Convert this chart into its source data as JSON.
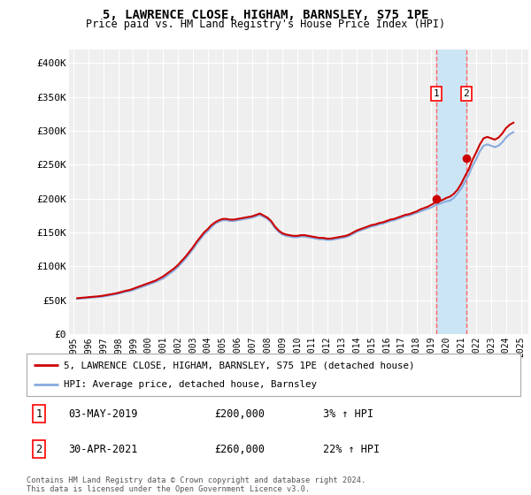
{
  "title": "5, LAWRENCE CLOSE, HIGHAM, BARNSLEY, S75 1PE",
  "subtitle": "Price paid vs. HM Land Registry's House Price Index (HPI)",
  "ylabel_ticks": [
    "£0",
    "£50K",
    "£100K",
    "£150K",
    "£200K",
    "£250K",
    "£300K",
    "£350K",
    "£400K"
  ],
  "ytick_values": [
    0,
    50000,
    100000,
    150000,
    200000,
    250000,
    300000,
    350000,
    400000
  ],
  "ylim": [
    0,
    420000
  ],
  "xlim_start": 1994.7,
  "xlim_end": 2025.5,
  "xtick_years": [
    1995,
    1996,
    1997,
    1998,
    1999,
    2000,
    2001,
    2002,
    2003,
    2004,
    2005,
    2006,
    2007,
    2008,
    2009,
    2010,
    2011,
    2012,
    2013,
    2014,
    2015,
    2016,
    2017,
    2018,
    2019,
    2020,
    2021,
    2022,
    2023,
    2024,
    2025
  ],
  "hpi_x": [
    1995.25,
    1995.5,
    1995.75,
    1996.0,
    1996.25,
    1996.5,
    1996.75,
    1997.0,
    1997.25,
    1997.5,
    1997.75,
    1998.0,
    1998.25,
    1998.5,
    1998.75,
    1999.0,
    1999.25,
    1999.5,
    1999.75,
    2000.0,
    2000.25,
    2000.5,
    2000.75,
    2001.0,
    2001.25,
    2001.5,
    2001.75,
    2002.0,
    2002.25,
    2002.5,
    2002.75,
    2003.0,
    2003.25,
    2003.5,
    2003.75,
    2004.0,
    2004.25,
    2004.5,
    2004.75,
    2005.0,
    2005.25,
    2005.5,
    2005.75,
    2006.0,
    2006.25,
    2006.5,
    2006.75,
    2007.0,
    2007.25,
    2007.5,
    2007.75,
    2008.0,
    2008.25,
    2008.5,
    2008.75,
    2009.0,
    2009.25,
    2009.5,
    2009.75,
    2010.0,
    2010.25,
    2010.5,
    2010.75,
    2011.0,
    2011.25,
    2011.5,
    2011.75,
    2012.0,
    2012.25,
    2012.5,
    2012.75,
    2013.0,
    2013.25,
    2013.5,
    2013.75,
    2014.0,
    2014.25,
    2014.5,
    2014.75,
    2015.0,
    2015.25,
    2015.5,
    2015.75,
    2016.0,
    2016.25,
    2016.5,
    2016.75,
    2017.0,
    2017.25,
    2017.5,
    2017.75,
    2018.0,
    2018.25,
    2018.5,
    2018.75,
    2019.0,
    2019.25,
    2019.5,
    2019.75,
    2020.0,
    2020.25,
    2020.5,
    2020.75,
    2021.0,
    2021.25,
    2021.5,
    2021.75,
    2022.0,
    2022.25,
    2022.5,
    2022.75,
    2023.0,
    2023.25,
    2023.5,
    2023.75,
    2024.0,
    2024.25,
    2024.5
  ],
  "hpi_y": [
    52000,
    52500,
    53000,
    53500,
    54000,
    54500,
    55000,
    55500,
    56500,
    57500,
    58500,
    59500,
    61000,
    62500,
    63500,
    65000,
    67000,
    69000,
    71000,
    73000,
    75000,
    77000,
    79500,
    82000,
    86000,
    90000,
    94000,
    99000,
    105000,
    111000,
    118000,
    125000,
    133000,
    140000,
    147000,
    152000,
    158000,
    163000,
    166000,
    168000,
    168000,
    167000,
    167000,
    168000,
    169000,
    170000,
    171000,
    172000,
    174000,
    176000,
    173000,
    170000,
    165000,
    157000,
    151000,
    147000,
    145000,
    144000,
    143000,
    143000,
    144000,
    144000,
    143000,
    142000,
    141000,
    140000,
    140000,
    139000,
    139000,
    140000,
    141000,
    142000,
    143000,
    145000,
    148000,
    151000,
    153000,
    155000,
    157000,
    159000,
    160000,
    162000,
    163000,
    165000,
    167000,
    168000,
    170000,
    172000,
    174000,
    175000,
    177000,
    179000,
    181000,
    183000,
    185000,
    187000,
    190000,
    192000,
    194000,
    196000,
    197000,
    201000,
    207000,
    215000,
    225000,
    235000,
    248000,
    258000,
    270000,
    278000,
    280000,
    278000,
    276000,
    278000,
    283000,
    290000,
    295000,
    298000
  ],
  "price_line_x": [
    1995.25,
    1995.5,
    1995.75,
    1996.0,
    1996.25,
    1996.5,
    1996.75,
    1997.0,
    1997.25,
    1997.5,
    1997.75,
    1998.0,
    1998.25,
    1998.5,
    1998.75,
    1999.0,
    1999.25,
    1999.5,
    1999.75,
    2000.0,
    2000.25,
    2000.5,
    2000.75,
    2001.0,
    2001.25,
    2001.5,
    2001.75,
    2002.0,
    2002.25,
    2002.5,
    2002.75,
    2003.0,
    2003.25,
    2003.5,
    2003.75,
    2004.0,
    2004.25,
    2004.5,
    2004.75,
    2005.0,
    2005.25,
    2005.5,
    2005.75,
    2006.0,
    2006.25,
    2006.5,
    2006.75,
    2007.0,
    2007.25,
    2007.5,
    2007.75,
    2008.0,
    2008.25,
    2008.5,
    2008.75,
    2009.0,
    2009.25,
    2009.5,
    2009.75,
    2010.0,
    2010.25,
    2010.5,
    2010.75,
    2011.0,
    2011.25,
    2011.5,
    2011.75,
    2012.0,
    2012.25,
    2012.5,
    2012.75,
    2013.0,
    2013.25,
    2013.5,
    2013.75,
    2014.0,
    2014.25,
    2014.5,
    2014.75,
    2015.0,
    2015.25,
    2015.5,
    2015.75,
    2016.0,
    2016.25,
    2016.5,
    2016.75,
    2017.0,
    2017.25,
    2017.5,
    2017.75,
    2018.0,
    2018.25,
    2018.5,
    2018.75,
    2019.0,
    2019.25,
    2019.5,
    2019.75,
    2020.0,
    2020.25,
    2020.5,
    2020.75,
    2021.0,
    2021.25,
    2021.5,
    2021.75,
    2022.0,
    2022.25,
    2022.5,
    2022.75,
    2023.0,
    2023.25,
    2023.5,
    2023.75,
    2024.0,
    2024.25,
    2024.5
  ],
  "price_line_y": [
    53000,
    53500,
    54000,
    54500,
    55000,
    55500,
    56000,
    56800,
    57800,
    58800,
    59800,
    61000,
    62500,
    64000,
    65000,
    67000,
    69000,
    71000,
    73000,
    75000,
    77000,
    79000,
    82000,
    85000,
    89000,
    93000,
    97000,
    102000,
    108000,
    114000,
    121000,
    128000,
    136000,
    143000,
    150000,
    155000,
    161000,
    165000,
    168000,
    170000,
    170000,
    169000,
    169000,
    170000,
    171000,
    172000,
    173000,
    174000,
    176000,
    178000,
    175000,
    172000,
    167000,
    159000,
    153000,
    149000,
    147000,
    146000,
    145000,
    145000,
    146000,
    146000,
    145000,
    144000,
    143000,
    142000,
    142000,
    141000,
    141000,
    142000,
    143000,
    144000,
    145000,
    147000,
    150000,
    153000,
    155000,
    157000,
    159000,
    161000,
    162000,
    164000,
    165000,
    167000,
    169000,
    170000,
    172000,
    174000,
    176000,
    177000,
    179000,
    181000,
    184000,
    186000,
    188000,
    191000,
    194000,
    196000,
    198000,
    201000,
    203000,
    207000,
    213000,
    222000,
    233000,
    243000,
    257000,
    268000,
    280000,
    289000,
    291000,
    289000,
    287000,
    290000,
    296000,
    304000,
    309000,
    312000
  ],
  "sale1_x": 2019.33,
  "sale1_y": 200000,
  "sale2_x": 2021.33,
  "sale2_y": 260000,
  "sale1_vline": 2019.33,
  "sale2_vline": 2021.33,
  "highlight_color": "#cce5f5",
  "vline_color": "#ff6666",
  "hpi_color": "#88aadd",
  "price_color": "#cc0000",
  "legend1_label": "5, LAWRENCE CLOSE, HIGHAM, BARNSLEY, S75 1PE (detached house)",
  "legend2_label": "HPI: Average price, detached house, Barnsley",
  "annotation1_label": "1",
  "annotation2_label": "2",
  "note1_num": "1",
  "note1_date": "03-MAY-2019",
  "note1_price": "£200,000",
  "note1_hpi": "3% ↑ HPI",
  "note2_num": "2",
  "note2_date": "30-APR-2021",
  "note2_price": "£260,000",
  "note2_hpi": "22% ↑ HPI",
  "footer": "Contains HM Land Registry data © Crown copyright and database right 2024.\nThis data is licensed under the Open Government Licence v3.0.",
  "bg_color": "#ffffff",
  "plot_bg_color": "#efefef"
}
